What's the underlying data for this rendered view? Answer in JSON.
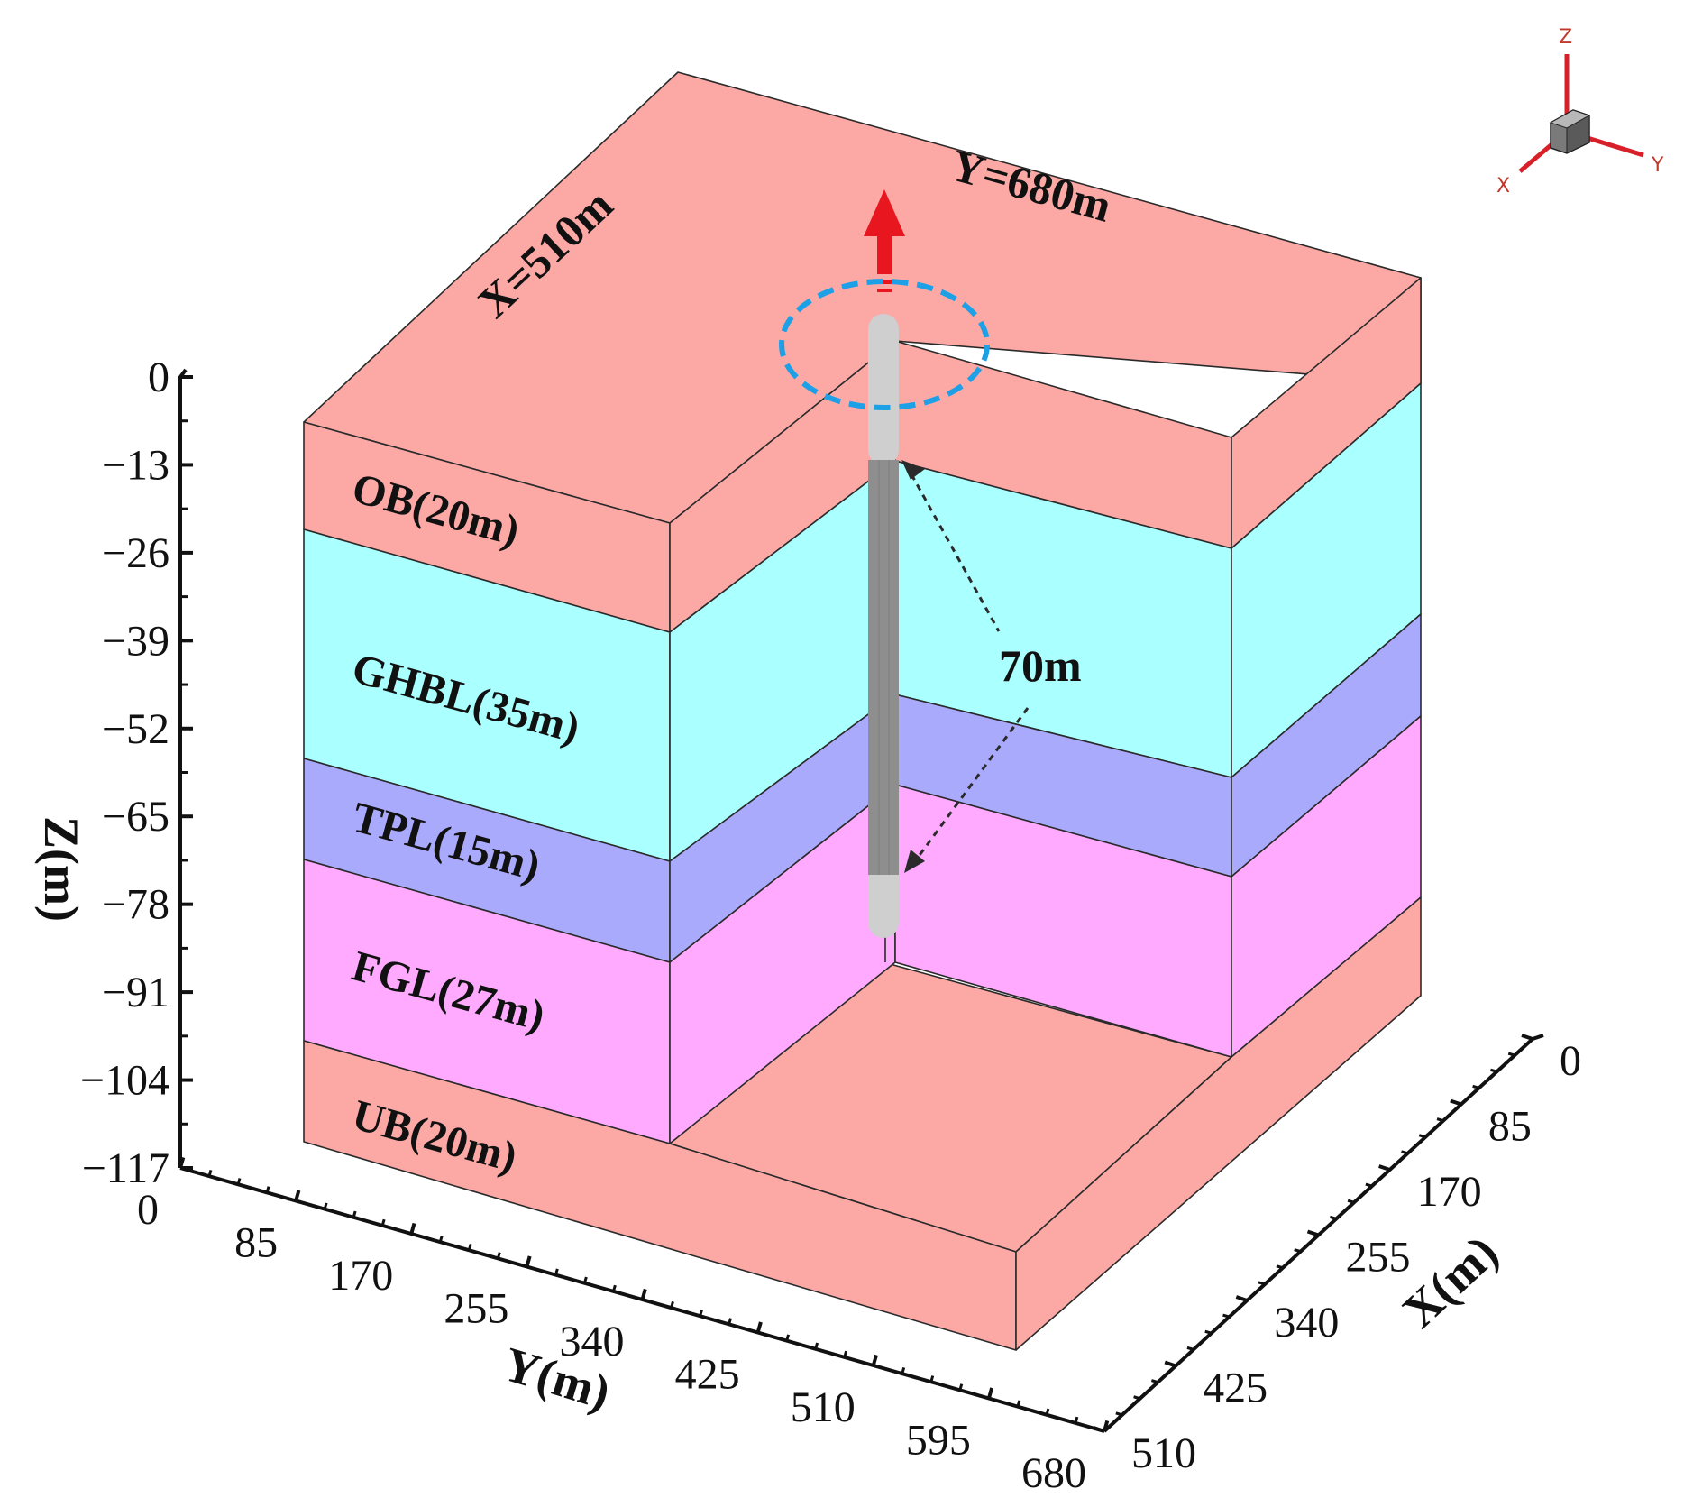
{
  "layers": [
    {
      "name": "OB",
      "label": "OB(20m)",
      "thickness_m": 20,
      "color": "#fca9a6"
    },
    {
      "name": "GHBL",
      "label": "GHBL(35m)",
      "thickness_m": 35,
      "color": "#aaffff"
    },
    {
      "name": "TPL",
      "label": "TPL(15m)",
      "thickness_m": 15,
      "color": "#aaaafd"
    },
    {
      "name": "FGL",
      "label": "FGL(27m)",
      "thickness_m": 27,
      "color": "#ffaaff"
    },
    {
      "name": "UB",
      "label": "UB(20m)",
      "thickness_m": 20,
      "color": "#fca9a6"
    }
  ],
  "top_labels": {
    "x_extent": "X=510m",
    "y_extent": "Y=680m"
  },
  "well": {
    "length_label": "70m",
    "arrow_color": "#e8161f",
    "ring_color": "#1ea0e6"
  },
  "axes": {
    "z": {
      "title": "Z(m)",
      "ticks": [
        "0",
        "−13",
        "−26",
        "−39",
        "−52",
        "−65",
        "−78",
        "−91",
        "−104",
        "−117"
      ]
    },
    "y": {
      "title": "Y(m)",
      "ticks": [
        "0",
        "85",
        "170",
        "255",
        "340",
        "425",
        "510",
        "595",
        "680"
      ]
    },
    "x": {
      "title": "X(m)",
      "ticks": [
        "0",
        "85",
        "170",
        "255",
        "340",
        "425",
        "510"
      ]
    }
  },
  "triad": {
    "z": "Z",
    "y": "Y",
    "x": "X"
  }
}
